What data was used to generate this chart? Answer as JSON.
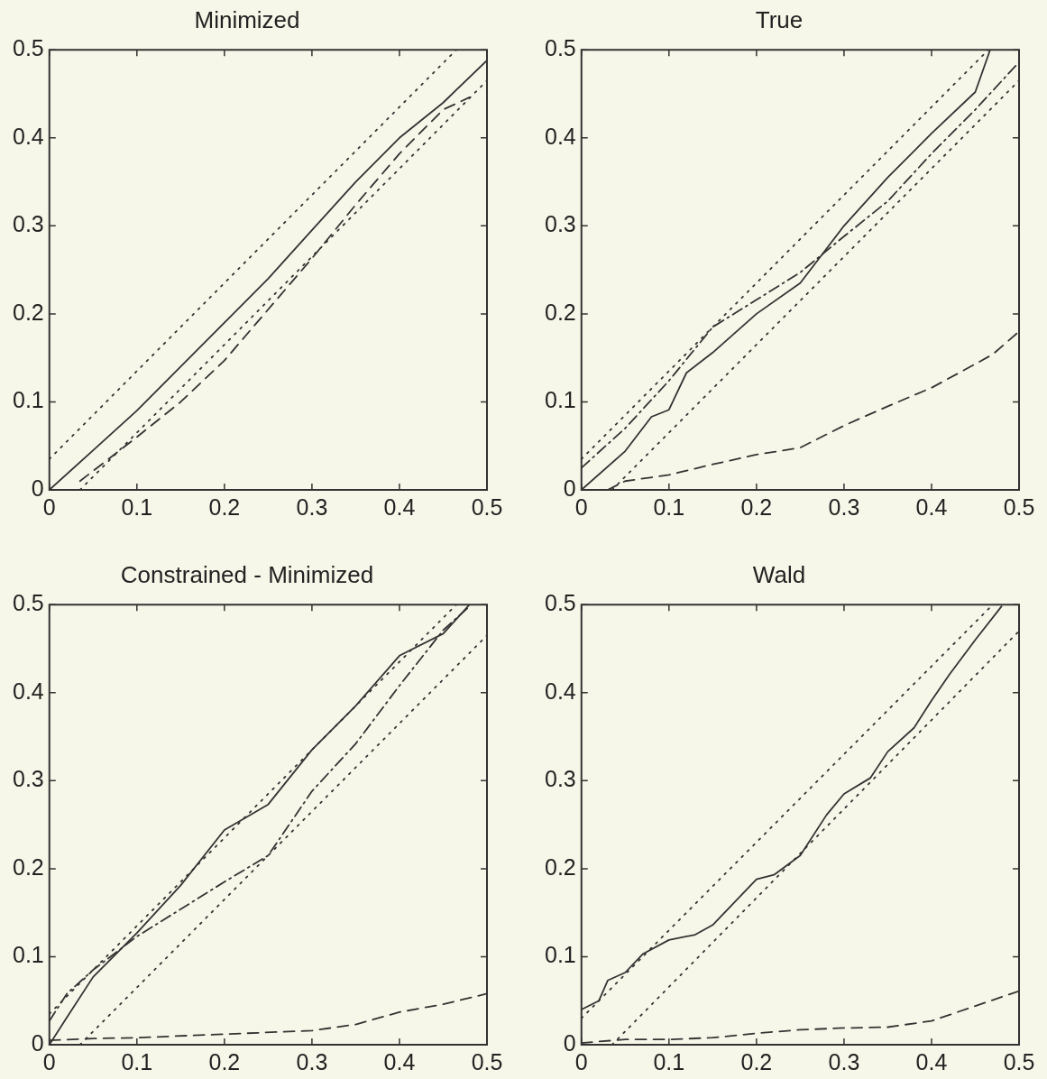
{
  "chart_data": [
    {
      "type": "line",
      "title": "Minimized",
      "xlim": [
        0,
        0.5
      ],
      "ylim": [
        0,
        0.5
      ],
      "xticks": [
        0,
        0.1,
        0.2,
        0.3,
        0.4,
        0.5
      ],
      "yticks": [
        0,
        0.1,
        0.2,
        0.3,
        0.4,
        0.5
      ],
      "marker": "none",
      "series": [
        {
          "color": "#333333",
          "line_style": "solid",
          "x": [
            0,
            0.05,
            0.1,
            0.15,
            0.2,
            0.25,
            0.3,
            0.35,
            0.4,
            0.45,
            0.5
          ],
          "values": [
            0,
            0.045,
            0.09,
            0.14,
            0.19,
            0.24,
            0.295,
            0.35,
            0.4,
            0.44,
            0.488
          ]
        },
        {
          "color": "#333333",
          "line_style": "dashed",
          "x": [
            0.035,
            0.1,
            0.15,
            0.2,
            0.25,
            0.3,
            0.35,
            0.4,
            0.45,
            0.48
          ],
          "values": [
            0.01,
            0.06,
            0.1,
            0.147,
            0.205,
            0.263,
            0.324,
            0.382,
            0.432,
            0.446
          ]
        },
        {
          "color": "#333333",
          "line_style": "dotted",
          "x": [
            0,
            0.465
          ],
          "values": [
            0.035,
            0.5
          ]
        },
        {
          "color": "#333333",
          "line_style": "dotted",
          "x": [
            0.035,
            0.5
          ],
          "values": [
            0,
            0.465
          ]
        }
      ]
    },
    {
      "type": "line",
      "title": "True",
      "xlim": [
        0,
        0.5
      ],
      "ylim": [
        0,
        0.5
      ],
      "xticks": [
        0,
        0.1,
        0.2,
        0.3,
        0.4,
        0.5
      ],
      "yticks": [
        0,
        0.1,
        0.2,
        0.3,
        0.4,
        0.5
      ],
      "marker": "none",
      "series": [
        {
          "color": "#333333",
          "line_style": "solid",
          "x": [
            0,
            0.05,
            0.08,
            0.1,
            0.12,
            0.15,
            0.2,
            0.25,
            0.3,
            0.35,
            0.4,
            0.45,
            0.467
          ],
          "values": [
            0,
            0.044,
            0.083,
            0.091,
            0.133,
            0.156,
            0.2,
            0.235,
            0.3,
            0.355,
            0.405,
            0.452,
            0.5
          ]
        },
        {
          "color": "#333333",
          "line_style": "dashdot",
          "x": [
            0,
            0.05,
            0.1,
            0.15,
            0.2,
            0.25,
            0.3,
            0.35,
            0.4,
            0.45,
            0.5
          ],
          "values": [
            0.025,
            0.07,
            0.124,
            0.185,
            0.216,
            0.247,
            0.288,
            0.328,
            0.382,
            0.432,
            0.486
          ]
        },
        {
          "color": "#333333",
          "line_style": "dashed",
          "x": [
            0.03,
            0.05,
            0.1,
            0.15,
            0.2,
            0.25,
            0.3,
            0.35,
            0.4,
            0.45,
            0.47,
            0.5
          ],
          "values": [
            0,
            0.01,
            0.017,
            0.029,
            0.04,
            0.048,
            0.073,
            0.095,
            0.116,
            0.143,
            0.154,
            0.18
          ]
        },
        {
          "color": "#333333",
          "line_style": "dotted",
          "x": [
            0,
            0.465
          ],
          "values": [
            0.035,
            0.5
          ]
        },
        {
          "color": "#333333",
          "line_style": "dotted",
          "x": [
            0.035,
            0.5
          ],
          "values": [
            0,
            0.465
          ]
        }
      ]
    },
    {
      "type": "line",
      "title": "Constrained - Minimized",
      "xlim": [
        0,
        0.5
      ],
      "ylim": [
        0,
        0.5
      ],
      "xticks": [
        0,
        0.1,
        0.2,
        0.3,
        0.4,
        0.5
      ],
      "yticks": [
        0,
        0.1,
        0.2,
        0.3,
        0.4,
        0.5
      ],
      "marker": "none",
      "series": [
        {
          "color": "#333333",
          "line_style": "solid",
          "x": [
            0,
            0.02,
            0.05,
            0.1,
            0.15,
            0.2,
            0.25,
            0.3,
            0.35,
            0.4,
            0.45,
            0.48
          ],
          "values": [
            0,
            0.031,
            0.077,
            0.127,
            0.181,
            0.244,
            0.273,
            0.335,
            0.385,
            0.442,
            0.467,
            0.5
          ]
        },
        {
          "color": "#333333",
          "line_style": "dashdot",
          "x": [
            0,
            0.02,
            0.05,
            0.1,
            0.15,
            0.2,
            0.25,
            0.3,
            0.35,
            0.4,
            0.45,
            0.48
          ],
          "values": [
            0.027,
            0.058,
            0.085,
            0.123,
            0.154,
            0.185,
            0.215,
            0.288,
            0.342,
            0.408,
            0.471,
            0.498
          ]
        },
        {
          "color": "#333333",
          "line_style": "dashed",
          "x": [
            0,
            0.05,
            0.1,
            0.2,
            0.3,
            0.35,
            0.4,
            0.45,
            0.5
          ],
          "values": [
            0.005,
            0.007,
            0.008,
            0.012,
            0.016,
            0.023,
            0.037,
            0.046,
            0.058
          ]
        },
        {
          "color": "#333333",
          "line_style": "dotted",
          "x": [
            0,
            0.465
          ],
          "values": [
            0.035,
            0.5
          ]
        },
        {
          "color": "#333333",
          "line_style": "dotted",
          "x": [
            0.035,
            0.5
          ],
          "values": [
            0,
            0.465
          ]
        }
      ]
    },
    {
      "type": "line",
      "title": "Wald",
      "xlim": [
        0,
        0.5
      ],
      "ylim": [
        0,
        0.5
      ],
      "xticks": [
        0,
        0.1,
        0.2,
        0.3,
        0.4,
        0.5
      ],
      "yticks": [
        0,
        0.1,
        0.2,
        0.3,
        0.4,
        0.5
      ],
      "marker": "none",
      "series": [
        {
          "color": "#333333",
          "line_style": "solid",
          "x": [
            0,
            0.02,
            0.03,
            0.05,
            0.07,
            0.1,
            0.13,
            0.15,
            0.2,
            0.22,
            0.25,
            0.28,
            0.3,
            0.33,
            0.35,
            0.38,
            0.4,
            0.42,
            0.45,
            0.48
          ],
          "values": [
            0.04,
            0.05,
            0.073,
            0.082,
            0.103,
            0.119,
            0.125,
            0.136,
            0.188,
            0.193,
            0.215,
            0.261,
            0.285,
            0.303,
            0.333,
            0.36,
            0.391,
            0.42,
            0.46,
            0.498
          ]
        },
        {
          "color": "#333333",
          "line_style": "dashed",
          "x": [
            0,
            0.05,
            0.1,
            0.15,
            0.2,
            0.25,
            0.3,
            0.35,
            0.4,
            0.45,
            0.5
          ],
          "values": [
            0.002,
            0.006,
            0.006,
            0.008,
            0.013,
            0.017,
            0.019,
            0.02,
            0.027,
            0.044,
            0.061
          ]
        },
        {
          "color": "#333333",
          "line_style": "dotted",
          "x": [
            0,
            0.47
          ],
          "values": [
            0.03,
            0.5
          ]
        },
        {
          "color": "#333333",
          "line_style": "dotted",
          "x": [
            0.035,
            0.5
          ],
          "values": [
            0,
            0.47
          ]
        }
      ]
    }
  ]
}
